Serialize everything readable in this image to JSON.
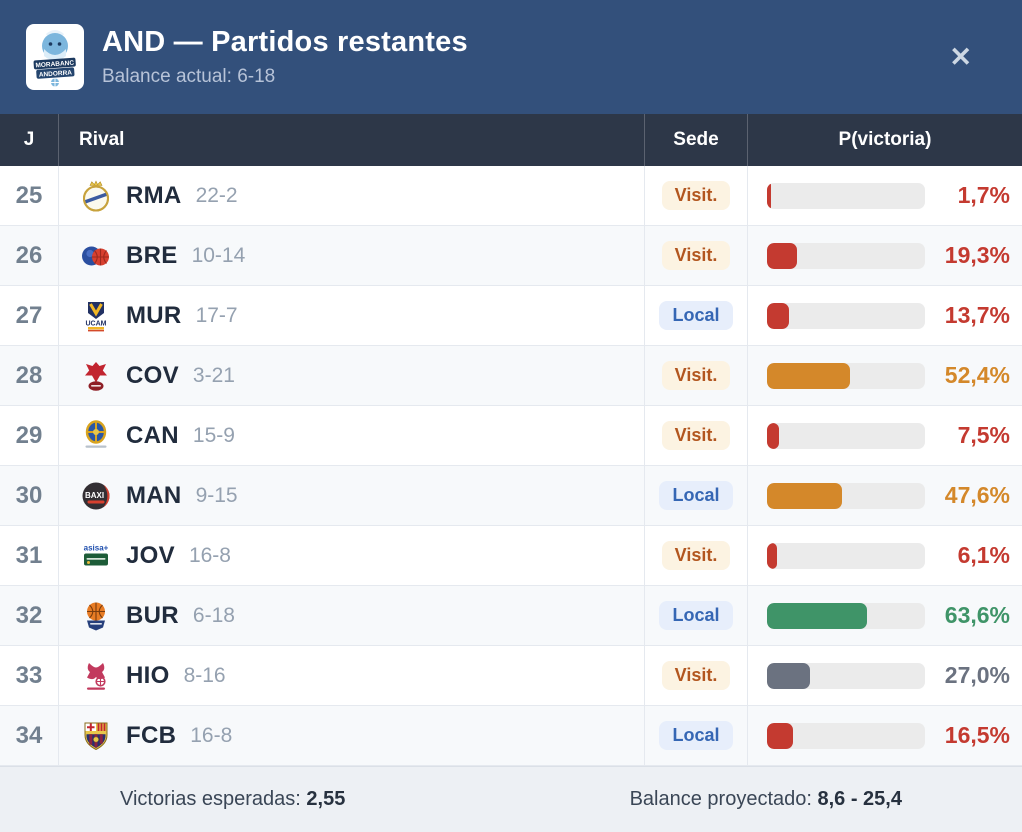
{
  "header": {
    "title": "AND — Partidos restantes",
    "subtitle": "Balance actual: 6-18",
    "logo_icon": "morabanc-andorra-logo",
    "close_glyph": "✕"
  },
  "table": {
    "columns": {
      "jornada": "J",
      "rival": "Rival",
      "sede": "Sede",
      "pvictoria": "P(victoria)"
    },
    "rows": [
      {
        "jornada": "25",
        "abbr": "RMA",
        "record": "22-2",
        "logo_icon": "rma-logo",
        "sede": "Visit.",
        "sede_type": "visit",
        "prob_pct": 1.7,
        "prob_label": "1,7%",
        "color": "#c43a30"
      },
      {
        "jornada": "26",
        "abbr": "BRE",
        "record": "10-14",
        "logo_icon": "bre-logo",
        "sede": "Visit.",
        "sede_type": "visit",
        "prob_pct": 19.3,
        "prob_label": "19,3%",
        "color": "#c43a30"
      },
      {
        "jornada": "27",
        "abbr": "MUR",
        "record": "17-7",
        "logo_icon": "mur-logo",
        "sede": "Local",
        "sede_type": "local",
        "prob_pct": 13.7,
        "prob_label": "13,7%",
        "color": "#c43a30"
      },
      {
        "jornada": "28",
        "abbr": "COV",
        "record": "3-21",
        "logo_icon": "cov-logo",
        "sede": "Visit.",
        "sede_type": "visit",
        "prob_pct": 52.4,
        "prob_label": "52,4%",
        "color": "#d4882a"
      },
      {
        "jornada": "29",
        "abbr": "CAN",
        "record": "15-9",
        "logo_icon": "can-logo",
        "sede": "Visit.",
        "sede_type": "visit",
        "prob_pct": 7.5,
        "prob_label": "7,5%",
        "color": "#c43a30"
      },
      {
        "jornada": "30",
        "abbr": "MAN",
        "record": "9-15",
        "logo_icon": "man-logo",
        "sede": "Local",
        "sede_type": "local",
        "prob_pct": 47.6,
        "prob_label": "47,6%",
        "color": "#d4882a"
      },
      {
        "jornada": "31",
        "abbr": "JOV",
        "record": "16-8",
        "logo_icon": "jov-logo",
        "sede": "Visit.",
        "sede_type": "visit",
        "prob_pct": 6.1,
        "prob_label": "6,1%",
        "color": "#c43a30"
      },
      {
        "jornada": "32",
        "abbr": "BUR",
        "record": "6-18",
        "logo_icon": "bur-logo",
        "sede": "Local",
        "sede_type": "local",
        "prob_pct": 63.6,
        "prob_label": "63,6%",
        "color": "#3f9468"
      },
      {
        "jornada": "33",
        "abbr": "HIO",
        "record": "8-16",
        "logo_icon": "hio-logo",
        "sede": "Visit.",
        "sede_type": "visit",
        "prob_pct": 27.0,
        "prob_label": "27,0%",
        "color": "#6b7280"
      },
      {
        "jornada": "34",
        "abbr": "FCB",
        "record": "16-8",
        "logo_icon": "fcb-logo",
        "sede": "Local",
        "sede_type": "local",
        "prob_pct": 16.5,
        "prob_label": "16,5%",
        "color": "#c43a30"
      }
    ]
  },
  "footer": {
    "expected_wins_label": "Victorias esperadas:",
    "expected_wins_value": "2,55",
    "projected_balance_label": "Balance proyectado:",
    "projected_balance_value": "8,6 - 25,4"
  },
  "colors": {
    "header_bg": "#33507b",
    "table_header_bg": "#2d3748",
    "prob_low": "#c43a30",
    "prob_mid_gray": "#6b7280",
    "prob_mid_orange": "#d4882a",
    "prob_high": "#3f9468",
    "badge_visit_bg": "#fcf3e2",
    "badge_visit_text": "#b2561f",
    "badge_local_bg": "#e7eefb",
    "badge_local_text": "#3566b4"
  }
}
